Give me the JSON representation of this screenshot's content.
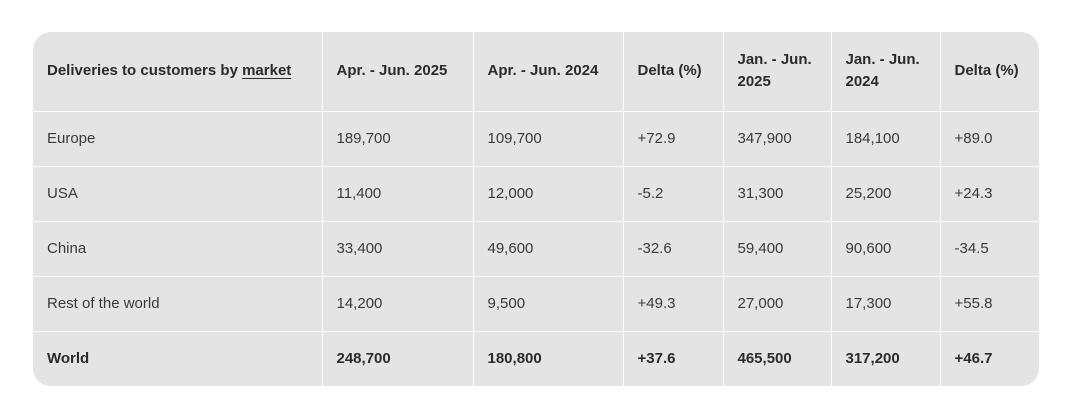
{
  "table": {
    "header": {
      "label_prefix": "Deliveries to customers by ",
      "label_link": "market",
      "columns": [
        "Apr. - Jun. 2025",
        "Apr. - Jun. 2024",
        "Delta (%)",
        "Jan. - Jun. 2025",
        "Jan. - Jun. 2024",
        "Delta (%)"
      ]
    },
    "rows": [
      {
        "market": "Europe",
        "values": [
          "189,700",
          "109,700",
          "+72.9",
          "347,900",
          "184,100",
          "+89.0"
        ]
      },
      {
        "market": "USA",
        "values": [
          "11,400",
          "12,000",
          "-5.2",
          "31,300",
          "25,200",
          "+24.3"
        ]
      },
      {
        "market": "China",
        "values": [
          "33,400",
          "49,600",
          "-32.6",
          "59,400",
          "90,600",
          "-34.5"
        ]
      },
      {
        "market": "Rest of the world",
        "values": [
          "14,200",
          "9,500",
          "+49.3",
          "27,000",
          "17,300",
          "+55.8"
        ]
      }
    ],
    "total": {
      "market": "World",
      "values": [
        "248,700",
        "180,800",
        "+37.6",
        "465,500",
        "317,200",
        "+46.7"
      ]
    }
  }
}
